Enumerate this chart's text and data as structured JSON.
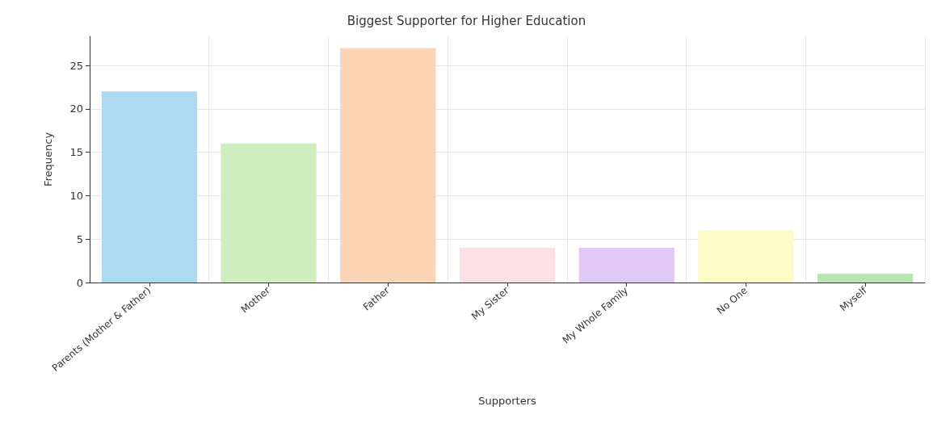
{
  "chart_data": {
    "type": "bar",
    "title": "Biggest Supporter for Higher Education",
    "xlabel": "Supporters",
    "ylabel": "Frequency",
    "categories": [
      "Parents (Mother & Father)",
      "Mother",
      "Father",
      "My Sister",
      "My Whole Family",
      "No One",
      "Myself"
    ],
    "values": [
      22,
      16,
      27,
      4,
      4,
      6,
      1
    ],
    "colors": [
      "#aed9f2",
      "#cfeebd",
      "#fbd5b6",
      "#fde0e5",
      "#e0c8f8",
      "#fdfbc8",
      "#b8e5b2"
    ],
    "ylim": [
      0,
      28.35
    ],
    "yticks": [
      0,
      5,
      10,
      15,
      20,
      25
    ],
    "grid": true
  }
}
